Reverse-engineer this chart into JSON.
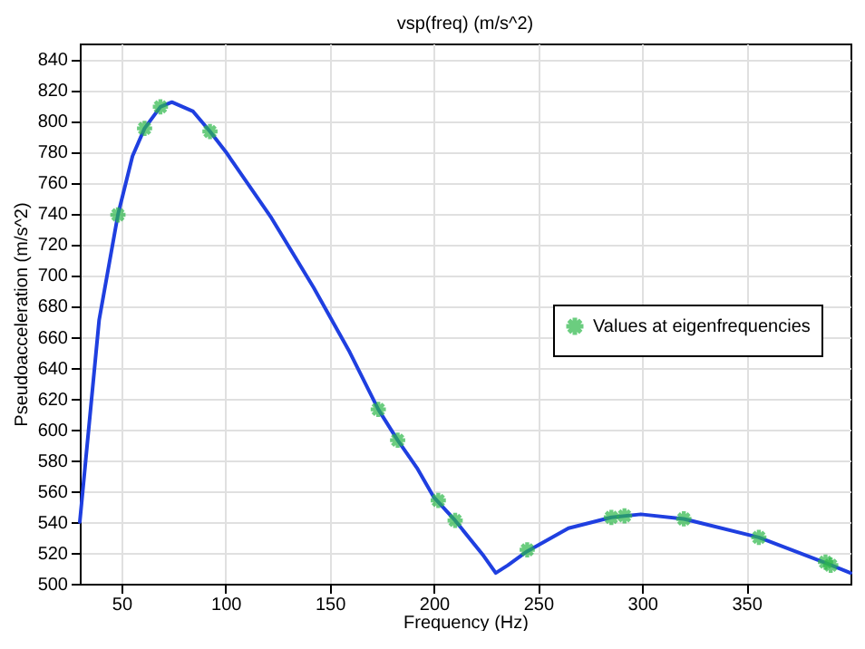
{
  "chart_data": {
    "type": "line",
    "title": "vsp(freq) (m/s^2)",
    "xlabel": "Frequency (Hz)",
    "ylabel": "Pseudoacceleration (m/s^2)",
    "xlim": [
      30,
      400
    ],
    "xticks": [
      50,
      100,
      150,
      200,
      250,
      300,
      350
    ],
    "ylim": [
      500,
      850
    ],
    "yticks": [
      500,
      520,
      540,
      560,
      580,
      600,
      620,
      640,
      660,
      680,
      700,
      720,
      740,
      760,
      780,
      800,
      820,
      840
    ],
    "grid": true,
    "legend": "right",
    "series": [
      {
        "color": "#1f3fe0",
        "line_style": "solid",
        "marker": "none",
        "x": [
          30,
          39.3,
          48.3,
          55.3,
          61.1,
          68.7,
          74.2,
          84.4,
          92.5,
          100,
          122,
          142.2,
          159.6,
          173.3,
          182.6,
          191.9,
          200,
          210.2,
          223.9,
          229.7,
          235.5,
          244.8,
          264.6,
          285.2,
          299.4,
          320,
          356,
          389,
          400
        ],
        "values": [
          540,
          671,
          739,
          777,
          795,
          809,
          812,
          806,
          793,
          780,
          737,
          692,
          650,
          613,
          593,
          575,
          556,
          541,
          518,
          507,
          512,
          521,
          536,
          543,
          545,
          542,
          530,
          513,
          507
        ]
      },
      {
        "type": "scatter",
        "name": "Values at eigenfrequencies",
        "color": "#2db84a",
        "marker": "cross",
        "x": [
          48.3,
          61.1,
          68.7,
          92.5,
          173.3,
          182.6,
          202.1,
          210.2,
          244.8,
          285.2,
          291.5,
          320,
          356,
          388,
          390.5
        ],
        "values": [
          739,
          795,
          809,
          793,
          613,
          593,
          554,
          541,
          522,
          543,
          544,
          542,
          530,
          514,
          512
        ]
      }
    ]
  }
}
